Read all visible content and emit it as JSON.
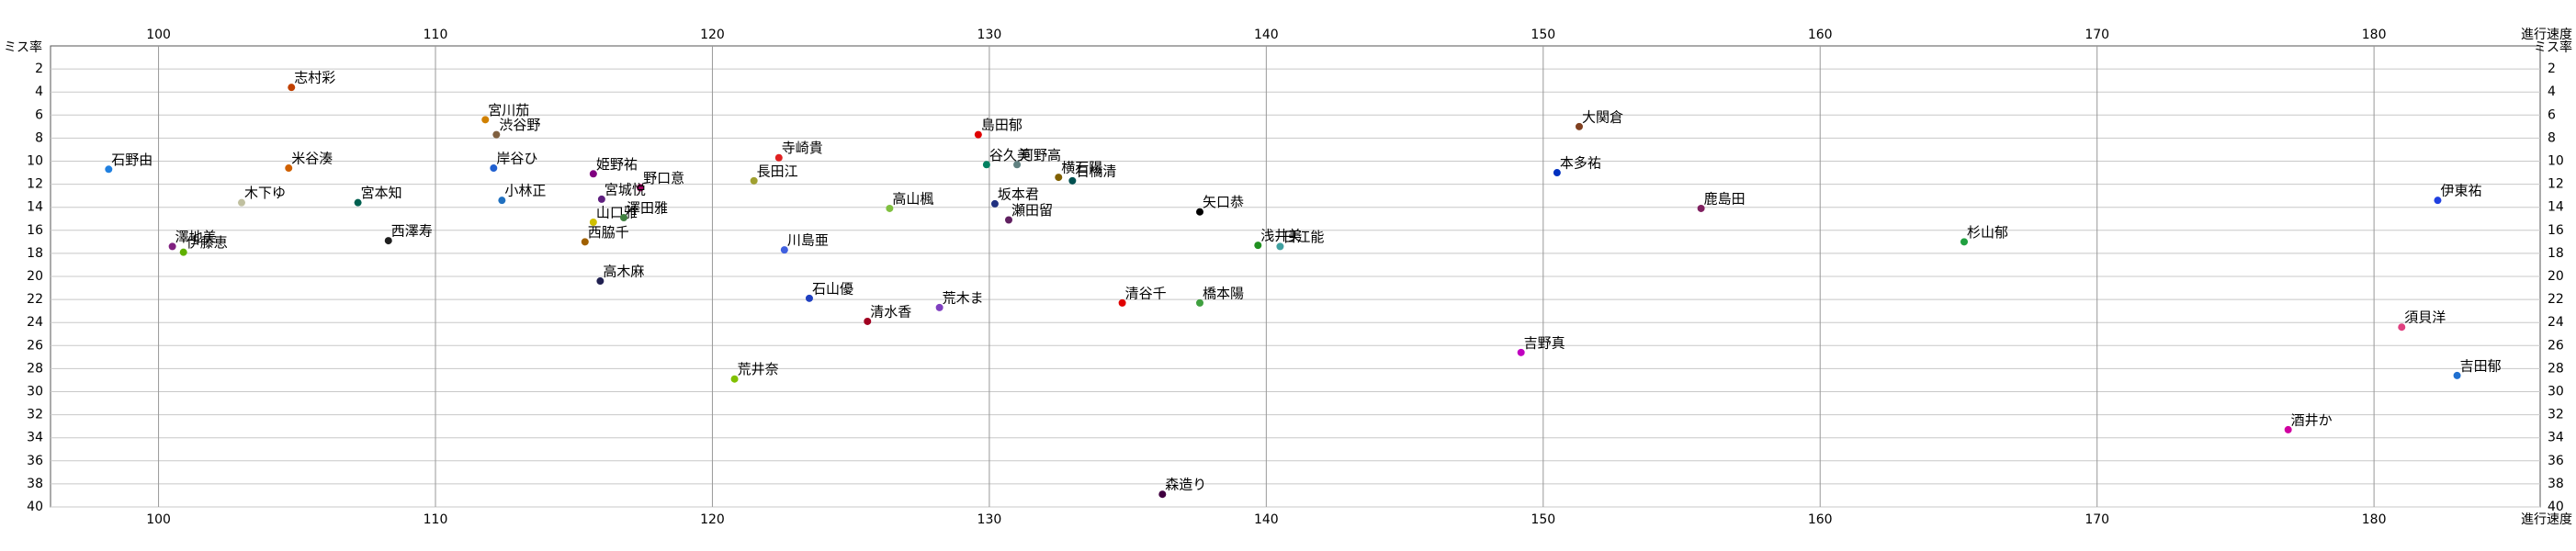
{
  "chart_data": {
    "type": "scatter",
    "x_label": "進行速度",
    "y_label": "ミス率",
    "xlim": [
      96.1,
      186
    ],
    "ylim": [
      0,
      40
    ],
    "y_inverted": true,
    "xticks": [
      100,
      110,
      120,
      130,
      140,
      150,
      160,
      170,
      180
    ],
    "yticks": [
      2,
      4,
      6,
      8,
      10,
      12,
      14,
      16,
      18,
      20,
      22,
      24,
      26,
      28,
      30,
      32,
      34,
      36,
      38,
      40
    ],
    "grid": true,
    "points": [
      {
        "label": "志村彩",
        "x": 104.8,
        "y": 3.6,
        "color": "#c04000"
      },
      {
        "label": "宮川茄",
        "x": 111.8,
        "y": 6.4,
        "color": "#d08000"
      },
      {
        "label": "渋谷野",
        "x": 112.2,
        "y": 7.7,
        "color": "#806040"
      },
      {
        "label": "島田郁",
        "x": 129.6,
        "y": 7.7,
        "color": "#e00000"
      },
      {
        "label": "大関倉",
        "x": 151.3,
        "y": 7.0,
        "color": "#804020"
      },
      {
        "label": "石野由",
        "x": 98.2,
        "y": 10.7,
        "color": "#2080e0"
      },
      {
        "label": "米谷湊",
        "x": 104.7,
        "y": 10.6,
        "color": "#d06000"
      },
      {
        "label": "岸谷ひ",
        "x": 112.1,
        "y": 10.6,
        "color": "#2060d0"
      },
      {
        "label": "姫野祐",
        "x": 115.7,
        "y": 11.1,
        "color": "#800080"
      },
      {
        "label": "野口意",
        "x": 117.4,
        "y": 12.3,
        "color": "#a00060"
      },
      {
        "label": "寺崎貴",
        "x": 122.4,
        "y": 9.7,
        "color": "#e02020"
      },
      {
        "label": "長田江",
        "x": 121.5,
        "y": 11.7,
        "color": "#a0a030"
      },
      {
        "label": "谷久美",
        "x": 129.9,
        "y": 10.3,
        "color": "#008060"
      },
      {
        "label": "河野高",
        "x": 131.0,
        "y": 10.3,
        "color": "#608080"
      },
      {
        "label": "横石陽",
        "x": 132.5,
        "y": 11.4,
        "color": "#806000"
      },
      {
        "label": "石橋清",
        "x": 133.0,
        "y": 11.7,
        "color": "#005050"
      },
      {
        "label": "本多祐",
        "x": 150.5,
        "y": 11.0,
        "color": "#0030c0"
      },
      {
        "label": "伊東祐",
        "x": 182.3,
        "y": 13.4,
        "color": "#2040e0"
      },
      {
        "label": "鹿島田",
        "x": 155.7,
        "y": 14.1,
        "color": "#802060"
      },
      {
        "label": "矢口恭",
        "x": 137.6,
        "y": 14.4,
        "color": "#000000"
      },
      {
        "label": "坂本君",
        "x": 130.2,
        "y": 13.7,
        "color": "#203080"
      },
      {
        "label": "瀬田留",
        "x": 130.7,
        "y": 15.1,
        "color": "#602060"
      },
      {
        "label": "高山楓",
        "x": 126.4,
        "y": 14.1,
        "color": "#80c040"
      },
      {
        "label": "小林正",
        "x": 112.4,
        "y": 13.4,
        "color": "#2070c0"
      },
      {
        "label": "宮城悦",
        "x": 116.0,
        "y": 13.3,
        "color": "#602080"
      },
      {
        "label": "宮本知",
        "x": 107.2,
        "y": 13.6,
        "color": "#006050"
      },
      {
        "label": "木下ゆ",
        "x": 103.0,
        "y": 13.6,
        "color": "#c0c0a0"
      },
      {
        "label": "西澤寿",
        "x": 108.3,
        "y": 16.9,
        "color": "#202020"
      },
      {
        "label": "山口雅",
        "x": 115.7,
        "y": 15.3,
        "color": "#d0c000"
      },
      {
        "label": "澤田雅",
        "x": 116.8,
        "y": 14.9,
        "color": "#408040"
      },
      {
        "label": "西脇千",
        "x": 115.4,
        "y": 17.0,
        "color": "#a06000"
      },
      {
        "label": "澤地美",
        "x": 100.5,
        "y": 17.4,
        "color": "#802080"
      },
      {
        "label": "伊藤恵",
        "x": 100.9,
        "y": 17.9,
        "color": "#60b000"
      },
      {
        "label": "川島亜",
        "x": 122.6,
        "y": 17.7,
        "color": "#4060e0"
      },
      {
        "label": "浅井美",
        "x": 139.7,
        "y": 17.3,
        "color": "#209020"
      },
      {
        "label": "日江能",
        "x": 140.5,
        "y": 17.4,
        "color": "#40a0a0"
      },
      {
        "label": "杉山郁",
        "x": 165.2,
        "y": 17.0,
        "color": "#20a040"
      },
      {
        "label": "高木麻",
        "x": 115.95,
        "y": 20.4,
        "color": "#202050"
      },
      {
        "label": "石山優",
        "x": 123.5,
        "y": 21.9,
        "color": "#2040c0"
      },
      {
        "label": "清谷千",
        "x": 134.8,
        "y": 22.3,
        "color": "#e00000"
      },
      {
        "label": "橋本陽",
        "x": 137.6,
        "y": 22.3,
        "color": "#40a040"
      },
      {
        "label": "荒木ま",
        "x": 128.2,
        "y": 22.7,
        "color": "#8040c0"
      },
      {
        "label": "清水香",
        "x": 125.6,
        "y": 23.9,
        "color": "#a00020"
      },
      {
        "label": "須貝洋",
        "x": 181.0,
        "y": 24.4,
        "color": "#e04080"
      },
      {
        "label": "吉野真",
        "x": 149.2,
        "y": 26.6,
        "color": "#c000c0"
      },
      {
        "label": "荒井奈",
        "x": 120.8,
        "y": 28.9,
        "color": "#80c000"
      },
      {
        "label": "吉田郁",
        "x": 183.0,
        "y": 28.6,
        "color": "#2070d0"
      },
      {
        "label": "酒井か",
        "x": 176.9,
        "y": 33.3,
        "color": "#d000a0"
      },
      {
        "label": "森造り",
        "x": 136.25,
        "y": 38.9,
        "color": "#400040"
      }
    ]
  }
}
